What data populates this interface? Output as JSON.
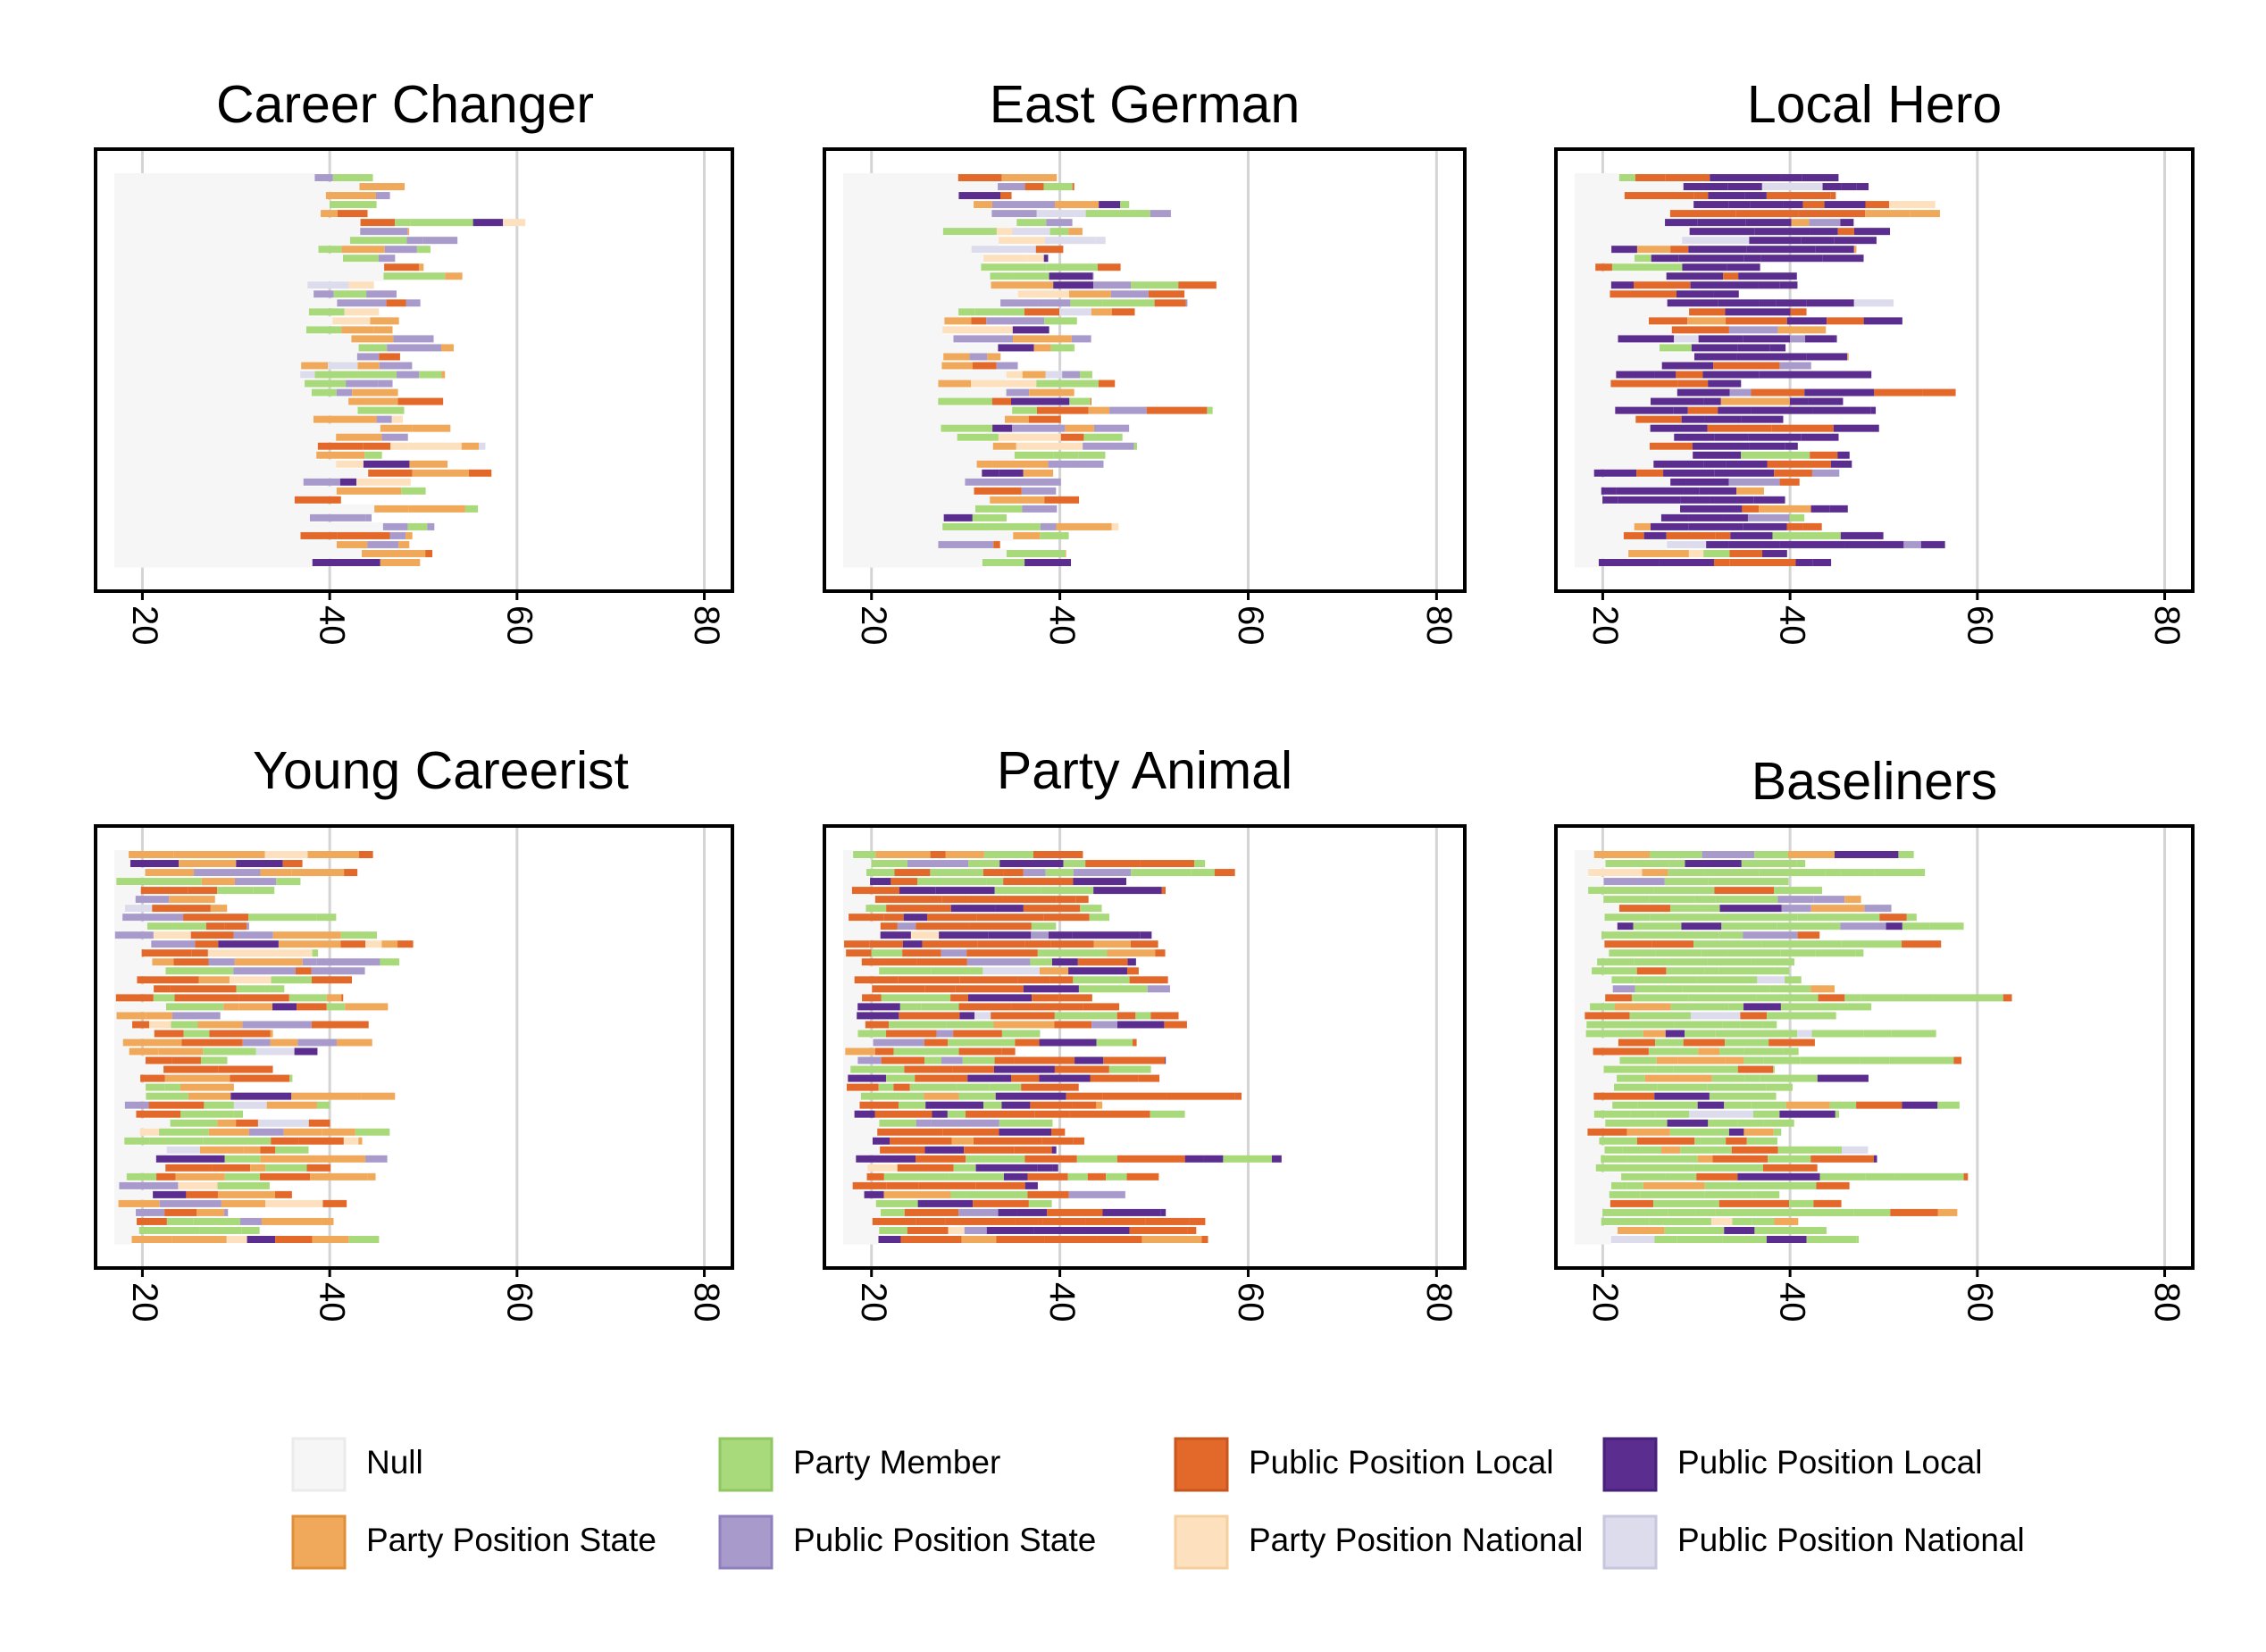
{
  "colors": {
    "Null": "#f6f6f6",
    "Party Member": "#a8d97a",
    "Party Position State": "#f0a95a",
    "Public Position State": "#a89bcc",
    "Public Position Local (orange)": "#e3692a",
    "Party Position National": "#fde0bd",
    "Public Position Local (purple)": "#5a2d8f",
    "Public Position National": "#dcdcec"
  },
  "legend": [
    {
      "label": "Null",
      "color": "#f6f6f6",
      "border": "#ebebeb"
    },
    {
      "label": "Party Member",
      "color": "#a8d97a",
      "border": "#8fc862"
    },
    {
      "label": "Public Position Local",
      "color": "#e3692a",
      "border": "#c9561c"
    },
    {
      "label": "Public Position Local",
      "color": "#5a2d8f",
      "border": "#47207a"
    },
    {
      "label": "Party Position State",
      "color": "#f0a95a",
      "border": "#e08f38"
    },
    {
      "label": "Public Position State",
      "color": "#a89bcc",
      "border": "#8f80bd"
    },
    {
      "label": "Party Position National",
      "color": "#fde0bd",
      "border": "#f6cf9f"
    },
    {
      "label": "Public Position National",
      "color": "#dcdcec",
      "border": "#c6c6dc"
    }
  ],
  "chart_data": [
    {
      "type": "bar",
      "title": "Career Changer",
      "xticks": [
        20,
        40,
        60,
        80
      ],
      "xlim": [
        15,
        83
      ],
      "rows": 44,
      "null_start": 17,
      "start_range": [
        36,
        46
      ],
      "length_range": [
        4,
        12
      ],
      "max_end": 69,
      "weights": {
        "Party Member": 0.25,
        "Party Position State": 0.3,
        "Public Position State": 0.2,
        "Public Position Local (orange)": 0.1,
        "Public Position Local (purple)": 0.05,
        "Party Position National": 0.05,
        "Public Position National": 0.05
      },
      "seed": 11
    },
    {
      "type": "bar",
      "title": "East German",
      "xticks": [
        20,
        40,
        60,
        80
      ],
      "xlim": [
        15,
        83
      ],
      "rows": 44,
      "null_start": 17,
      "start_range": [
        27,
        36
      ],
      "length_range": [
        5,
        20
      ],
      "max_end": 61,
      "weights": {
        "Party Member": 0.25,
        "Party Position State": 0.2,
        "Public Position State": 0.2,
        "Public Position Local (orange)": 0.15,
        "Public Position Local (purple)": 0.05,
        "Party Position National": 0.1,
        "Public Position National": 0.05
      },
      "seed": 23
    },
    {
      "type": "bar",
      "title": "Local Hero",
      "xticks": [
        20,
        40,
        60,
        80
      ],
      "xlim": [
        15,
        83
      ],
      "rows": 44,
      "null_start": 17,
      "start_range": [
        19,
        30
      ],
      "length_range": [
        12,
        30
      ],
      "max_end": 66,
      "weights": {
        "Party Member": 0.05,
        "Party Position State": 0.03,
        "Public Position State": 0.05,
        "Public Position Local (orange)": 0.22,
        "Public Position Local (purple)": 0.6,
        "Party Position National": 0.02,
        "Public Position National": 0.03
      },
      "seed": 37
    },
    {
      "type": "bar",
      "title": "Young Careerist",
      "xticks": [
        20,
        40,
        60,
        80
      ],
      "xlim": [
        15,
        83
      ],
      "rows": 44,
      "null_start": 17,
      "start_range": [
        17,
        23
      ],
      "length_range": [
        8,
        28
      ],
      "max_end": 55,
      "weights": {
        "Party Member": 0.22,
        "Party Position State": 0.25,
        "Public Position State": 0.12,
        "Public Position Local (orange)": 0.28,
        "Public Position Local (purple)": 0.05,
        "Party Position National": 0.05,
        "Public Position National": 0.03
      },
      "seed": 51
    },
    {
      "type": "bar",
      "title": "Party Animal",
      "xticks": [
        20,
        40,
        60,
        80
      ],
      "xlim": [
        15,
        83
      ],
      "rows": 44,
      "null_start": 17,
      "start_range": [
        17,
        21
      ],
      "length_range": [
        18,
        36
      ],
      "max_end": 66,
      "weights": {
        "Party Member": 0.18,
        "Party Position State": 0.05,
        "Public Position State": 0.06,
        "Public Position Local (orange)": 0.5,
        "Public Position Local (purple)": 0.18,
        "Party Position National": 0.02,
        "Public Position National": 0.01
      },
      "seed": 67
    },
    {
      "type": "bar",
      "title": "Baseliners",
      "xticks": [
        20,
        40,
        60,
        80
      ],
      "xlim": [
        15,
        83
      ],
      "rows": 44,
      "null_start": 17,
      "start_range": [
        18,
        22
      ],
      "length_range": [
        18,
        38
      ],
      "max_end": 70,
      "weights": {
        "Party Member": 0.68,
        "Party Position State": 0.04,
        "Public Position State": 0.03,
        "Public Position Local (orange)": 0.12,
        "Public Position Local (purple)": 0.1,
        "Party Position National": 0.01,
        "Public Position National": 0.02
      },
      "seed": 83
    }
  ]
}
